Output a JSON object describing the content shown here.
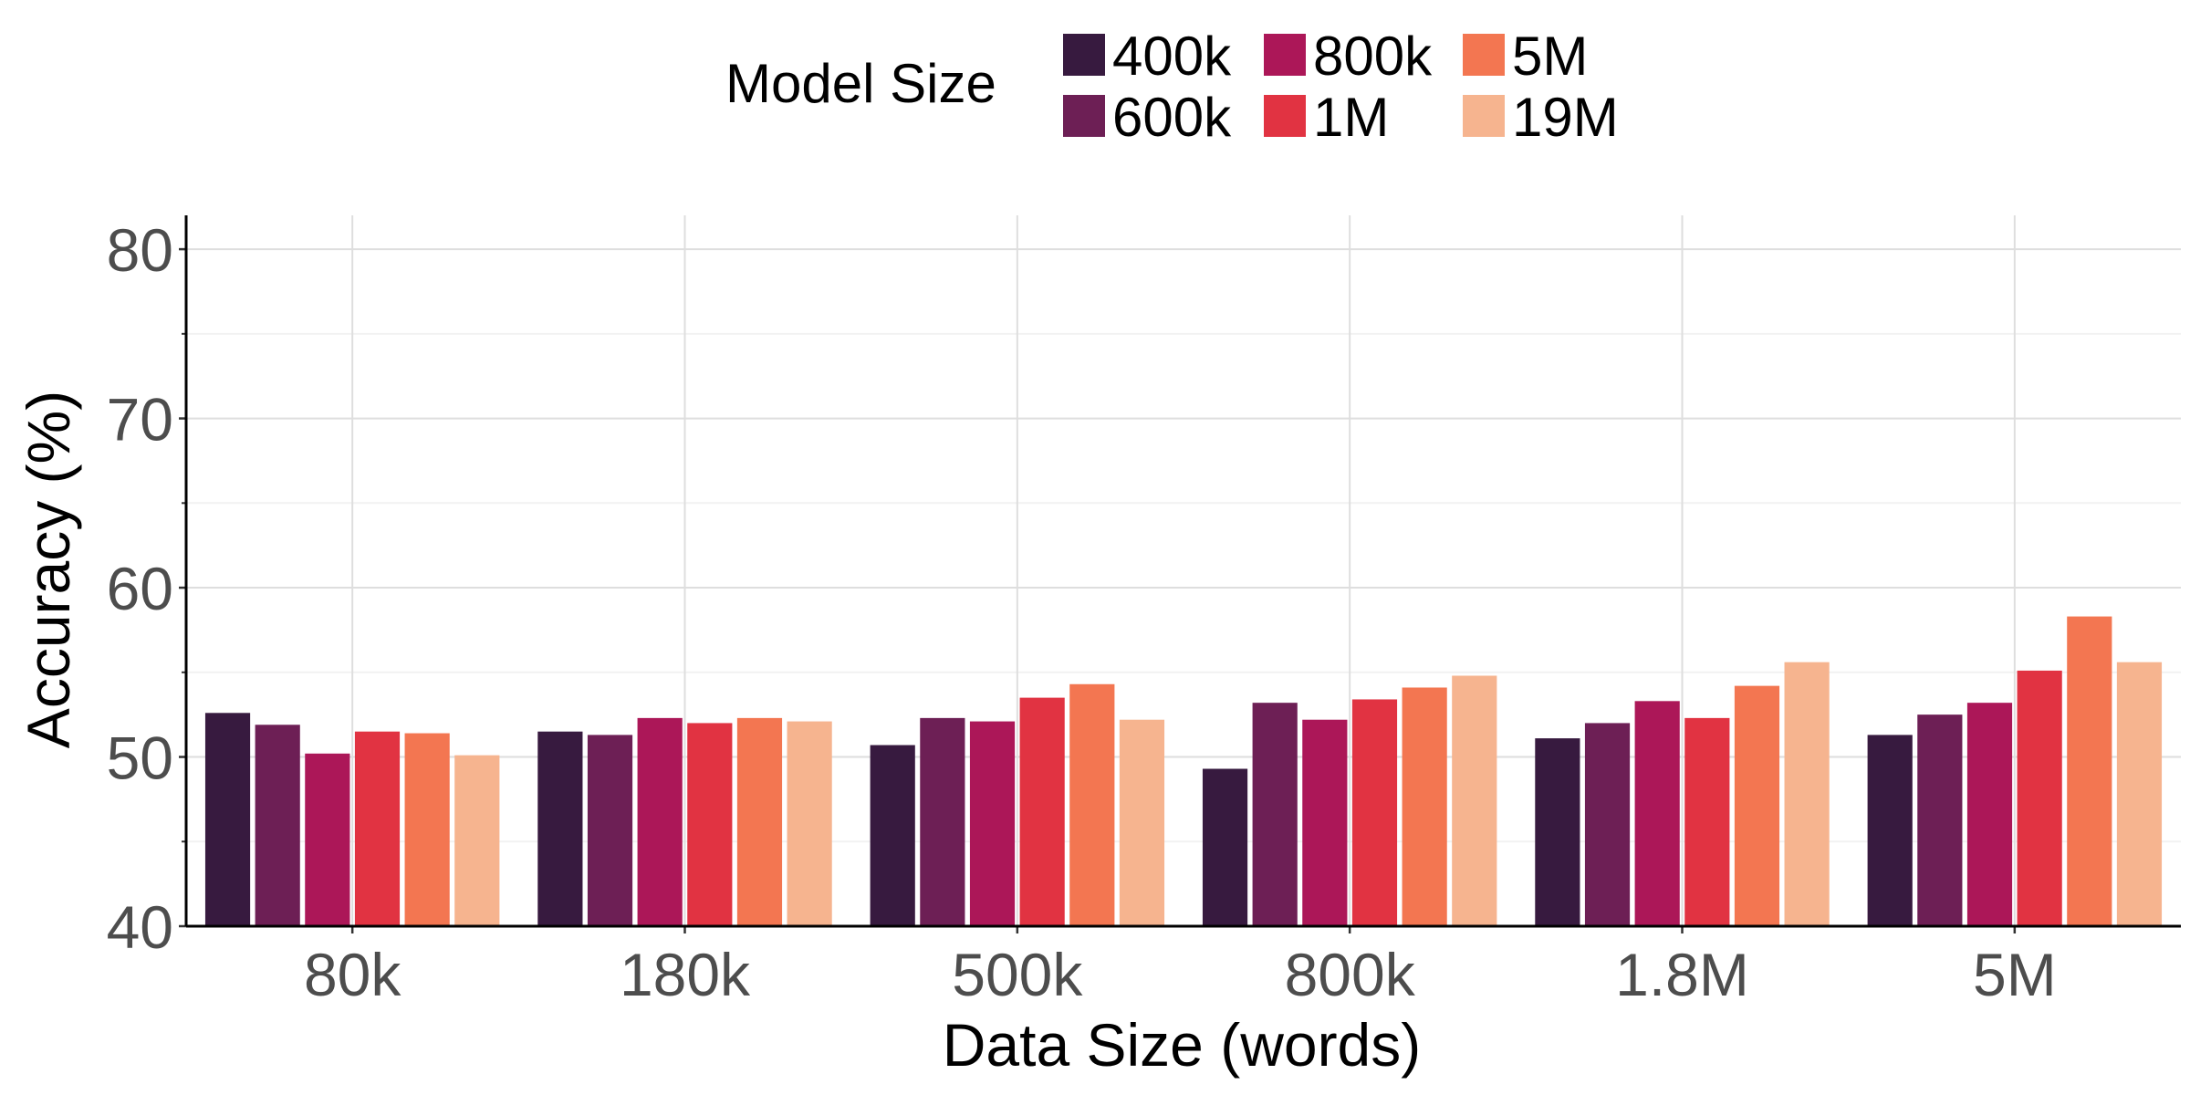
{
  "chart_data": {
    "type": "bar",
    "xlabel": "Data Size (words)",
    "ylabel": "Accuracy (%)",
    "ylim": [
      40,
      82
    ],
    "yticks": [
      40,
      50,
      60,
      70,
      80
    ],
    "grid": true,
    "legend": {
      "title": "Model Size",
      "position": "top"
    },
    "categories": [
      "80k",
      "180k",
      "500k",
      "800k",
      "1.8M",
      "5M"
    ],
    "series": [
      {
        "name": "400k",
        "color": "#371a3f",
        "values": [
          52.6,
          51.5,
          50.7,
          49.3,
          51.1,
          51.3
        ]
      },
      {
        "name": "600k",
        "color": "#6d1f55",
        "values": [
          51.9,
          51.3,
          52.3,
          53.2,
          52.0,
          52.5
        ]
      },
      {
        "name": "800k",
        "color": "#ac1758",
        "values": [
          50.2,
          52.3,
          52.1,
          52.2,
          53.3,
          53.2
        ]
      },
      {
        "name": "1M",
        "color": "#e13342",
        "values": [
          51.5,
          52.0,
          53.5,
          53.4,
          52.3,
          55.1
        ]
      },
      {
        "name": "5M",
        "color": "#f37651",
        "values": [
          51.4,
          52.3,
          54.3,
          54.1,
          54.2,
          58.3
        ]
      },
      {
        "name": "19M",
        "color": "#f6b48f",
        "values": [
          50.1,
          52.1,
          52.2,
          54.8,
          55.6,
          55.6
        ]
      }
    ]
  }
}
